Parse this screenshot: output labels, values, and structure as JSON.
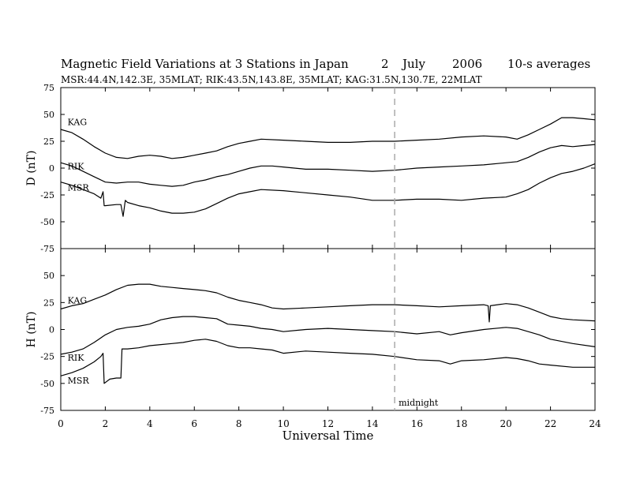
{
  "header": {
    "title": "Magnetic Field Variations at 3 Stations in Japan",
    "day": "2",
    "month": "July",
    "year": "2006",
    "averaging": "10-s averages",
    "stations_line": "MSR:44.4N,142.3E, 35MLAT;  RIK:43.5N,143.8E, 35MLAT;  KAG:31.5N,130.7E, 22MLAT"
  },
  "chart_data": {
    "type": "line",
    "xlabel": "Universal Time",
    "xlim": [
      0,
      24
    ],
    "x_ticks": [
      0,
      2,
      4,
      6,
      8,
      10,
      12,
      14,
      16,
      18,
      20,
      22,
      24
    ],
    "marker": {
      "x": 15,
      "label": "midnight",
      "style": "dashed",
      "color": "#aaaaaa"
    },
    "panels": [
      {
        "ylabel": "D (nT)",
        "ylim": [
          -75,
          75
        ],
        "y_ticks": [
          75,
          50,
          25,
          0,
          -25,
          -50,
          -75
        ],
        "series": [
          {
            "name": "KAG",
            "points": [
              [
                0,
                36
              ],
              [
                0.5,
                33
              ],
              [
                1,
                27
              ],
              [
                1.5,
                20
              ],
              [
                2,
                14
              ],
              [
                2.5,
                10
              ],
              [
                3,
                9
              ],
              [
                3.5,
                11
              ],
              [
                4,
                12
              ],
              [
                4.5,
                11
              ],
              [
                5,
                9
              ],
              [
                5.5,
                10
              ],
              [
                6,
                12
              ],
              [
                6.5,
                14
              ],
              [
                7,
                16
              ],
              [
                7.5,
                20
              ],
              [
                8,
                23
              ],
              [
                8.5,
                25
              ],
              [
                9,
                27
              ],
              [
                10,
                26
              ],
              [
                11,
                25
              ],
              [
                12,
                24
              ],
              [
                13,
                24
              ],
              [
                14,
                25
              ],
              [
                15,
                25
              ],
              [
                16,
                26
              ],
              [
                17,
                27
              ],
              [
                18,
                29
              ],
              [
                19,
                30
              ],
              [
                20,
                29
              ],
              [
                20.5,
                27
              ],
              [
                21,
                31
              ],
              [
                21.5,
                36
              ],
              [
                22,
                41
              ],
              [
                22.5,
                47
              ],
              [
                23,
                47
              ],
              [
                23.5,
                46
              ],
              [
                24,
                45
              ]
            ]
          },
          {
            "name": "RIK",
            "points": [
              [
                0,
                5
              ],
              [
                0.5,
                2
              ],
              [
                1,
                -3
              ],
              [
                1.5,
                -8
              ],
              [
                2,
                -13
              ],
              [
                2.5,
                -14
              ],
              [
                3,
                -13
              ],
              [
                3.5,
                -13
              ],
              [
                4,
                -15
              ],
              [
                4.5,
                -16
              ],
              [
                5,
                -17
              ],
              [
                5.5,
                -16
              ],
              [
                6,
                -13
              ],
              [
                6.5,
                -11
              ],
              [
                7,
                -8
              ],
              [
                7.5,
                -6
              ],
              [
                8,
                -3
              ],
              [
                8.5,
                0
              ],
              [
                9,
                2
              ],
              [
                9.5,
                2
              ],
              [
                10,
                1
              ],
              [
                11,
                -1
              ],
              [
                12,
                -1
              ],
              [
                13,
                -2
              ],
              [
                14,
                -3
              ],
              [
                15,
                -2
              ],
              [
                16,
                0
              ],
              [
                17,
                1
              ],
              [
                18,
                2
              ],
              [
                19,
                3
              ],
              [
                20,
                5
              ],
              [
                20.5,
                6
              ],
              [
                21,
                10
              ],
              [
                21.5,
                15
              ],
              [
                22,
                19
              ],
              [
                22.5,
                21
              ],
              [
                23,
                20
              ],
              [
                23.5,
                21
              ],
              [
                24,
                22
              ]
            ]
          },
          {
            "name": "MSR",
            "points": [
              [
                0,
                -13
              ],
              [
                0.5,
                -16
              ],
              [
                1,
                -20
              ],
              [
                1.5,
                -24
              ],
              [
                1.8,
                -28
              ],
              [
                1.9,
                -22
              ],
              [
                1.95,
                -35
              ],
              [
                2,
                -35
              ],
              [
                2.5,
                -34
              ],
              [
                2.7,
                -34
              ],
              [
                2.8,
                -45
              ],
              [
                2.9,
                -30
              ],
              [
                3,
                -32
              ],
              [
                3.5,
                -35
              ],
              [
                4,
                -37
              ],
              [
                4.5,
                -40
              ],
              [
                5,
                -42
              ],
              [
                5.5,
                -42
              ],
              [
                6,
                -41
              ],
              [
                6.5,
                -38
              ],
              [
                7,
                -33
              ],
              [
                7.5,
                -28
              ],
              [
                8,
                -24
              ],
              [
                8.5,
                -22
              ],
              [
                9,
                -20
              ],
              [
                10,
                -21
              ],
              [
                11,
                -23
              ],
              [
                12,
                -25
              ],
              [
                13,
                -27
              ],
              [
                14,
                -30
              ],
              [
                15,
                -30
              ],
              [
                16,
                -29
              ],
              [
                17,
                -29
              ],
              [
                18,
                -30
              ],
              [
                19,
                -28
              ],
              [
                20,
                -27
              ],
              [
                20.5,
                -24
              ],
              [
                21,
                -20
              ],
              [
                21.5,
                -14
              ],
              [
                22,
                -9
              ],
              [
                22.5,
                -5
              ],
              [
                23,
                -3
              ],
              [
                23.5,
                0
              ],
              [
                24,
                4
              ]
            ]
          }
        ],
        "series_labels": [
          {
            "text": "KAG",
            "x": 0.2,
            "y": 40
          },
          {
            "text": "RIK",
            "x": 0.2,
            "y": -1
          },
          {
            "text": "MSR",
            "x": 0.2,
            "y": -21
          }
        ]
      },
      {
        "ylabel": "H (nT)",
        "ylim": [
          -75,
          75
        ],
        "y_ticks": [
          50,
          25,
          0,
          -25,
          -50,
          -75
        ],
        "series": [
          {
            "name": "KAG",
            "points": [
              [
                0,
                19
              ],
              [
                0.5,
                22
              ],
              [
                1,
                24
              ],
              [
                1.5,
                28
              ],
              [
                2,
                32
              ],
              [
                2.5,
                37
              ],
              [
                3,
                41
              ],
              [
                3.5,
                42
              ],
              [
                4,
                42
              ],
              [
                4.5,
                40
              ],
              [
                5,
                39
              ],
              [
                5.5,
                38
              ],
              [
                6,
                37
              ],
              [
                6.5,
                36
              ],
              [
                7,
                34
              ],
              [
                7.5,
                30
              ],
              [
                8,
                27
              ],
              [
                8.5,
                25
              ],
              [
                9,
                23
              ],
              [
                9.5,
                20
              ],
              [
                10,
                19
              ],
              [
                11,
                20
              ],
              [
                12,
                21
              ],
              [
                13,
                22
              ],
              [
                14,
                23
              ],
              [
                15,
                23
              ],
              [
                16,
                22
              ],
              [
                17,
                21
              ],
              [
                18,
                22
              ],
              [
                19,
                23
              ],
              [
                19.2,
                22
              ],
              [
                19.25,
                7
              ],
              [
                19.3,
                22
              ],
              [
                20,
                24
              ],
              [
                20.5,
                23
              ],
              [
                21,
                20
              ],
              [
                21.5,
                16
              ],
              [
                22,
                12
              ],
              [
                22.5,
                10
              ],
              [
                23,
                9
              ],
              [
                24,
                8
              ]
            ]
          },
          {
            "name": "RIK",
            "points": [
              [
                0,
                -23
              ],
              [
                0.5,
                -21
              ],
              [
                1,
                -18
              ],
              [
                1.5,
                -12
              ],
              [
                2,
                -5
              ],
              [
                2.5,
                0
              ],
              [
                3,
                2
              ],
              [
                3.5,
                3
              ],
              [
                4,
                5
              ],
              [
                4.5,
                9
              ],
              [
                5,
                11
              ],
              [
                5.5,
                12
              ],
              [
                6,
                12
              ],
              [
                6.5,
                11
              ],
              [
                7,
                10
              ],
              [
                7.5,
                5
              ],
              [
                8,
                4
              ],
              [
                8.5,
                3
              ],
              [
                9,
                1
              ],
              [
                9.5,
                0
              ],
              [
                10,
                -2
              ],
              [
                11,
                0
              ],
              [
                12,
                1
              ],
              [
                13,
                0
              ],
              [
                14,
                -1
              ],
              [
                15,
                -2
              ],
              [
                16,
                -4
              ],
              [
                17,
                -2
              ],
              [
                17.5,
                -5
              ],
              [
                18,
                -3
              ],
              [
                19,
                0
              ],
              [
                20,
                2
              ],
              [
                20.5,
                1
              ],
              [
                21,
                -2
              ],
              [
                21.5,
                -5
              ],
              [
                22,
                -9
              ],
              [
                23,
                -13
              ],
              [
                24,
                -16
              ]
            ]
          },
          {
            "name": "MSR",
            "points": [
              [
                0,
                -43
              ],
              [
                0.5,
                -40
              ],
              [
                1,
                -36
              ],
              [
                1.5,
                -30
              ],
              [
                1.8,
                -25
              ],
              [
                1.9,
                -22
              ],
              [
                1.95,
                -50
              ],
              [
                2.2,
                -46
              ],
              [
                2.5,
                -45
              ],
              [
                2.7,
                -45
              ],
              [
                2.75,
                -18
              ],
              [
                3,
                -18
              ],
              [
                3.5,
                -17
              ],
              [
                4,
                -15
              ],
              [
                4.5,
                -14
              ],
              [
                5,
                -13
              ],
              [
                5.5,
                -12
              ],
              [
                6,
                -10
              ],
              [
                6.5,
                -9
              ],
              [
                7,
                -11
              ],
              [
                7.5,
                -15
              ],
              [
                8,
                -17
              ],
              [
                8.5,
                -17
              ],
              [
                9,
                -18
              ],
              [
                9.5,
                -19
              ],
              [
                10,
                -22
              ],
              [
                11,
                -20
              ],
              [
                12,
                -21
              ],
              [
                13,
                -22
              ],
              [
                14,
                -23
              ],
              [
                15,
                -25
              ],
              [
                16,
                -28
              ],
              [
                17,
                -29
              ],
              [
                17.5,
                -32
              ],
              [
                18,
                -29
              ],
              [
                19,
                -28
              ],
              [
                20,
                -26
              ],
              [
                20.5,
                -27
              ],
              [
                21,
                -29
              ],
              [
                21.5,
                -32
              ],
              [
                22,
                -33
              ],
              [
                23,
                -35
              ],
              [
                24,
                -35
              ]
            ]
          }
        ],
        "series_labels": [
          {
            "text": "KAG",
            "x": 0.2,
            "y": 24
          },
          {
            "text": "RIK",
            "x": 0.2,
            "y": -29
          },
          {
            "text": "MSR",
            "x": 0.2,
            "y": -50
          }
        ]
      }
    ]
  }
}
